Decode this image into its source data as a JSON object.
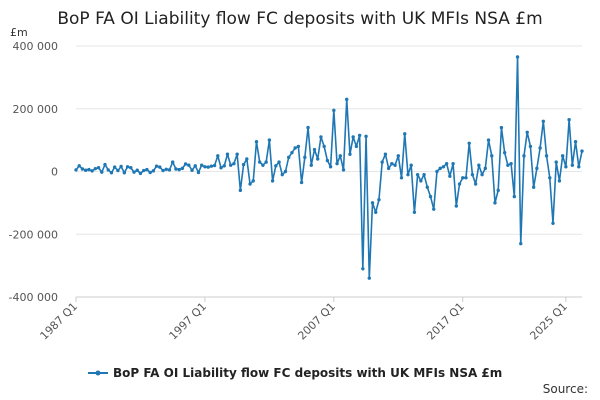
{
  "title": "BoP FA OI Liability flow FC deposits with UK MFIs NSA £m",
  "source_label": "Source:",
  "colors": {
    "series": "#1f77b4",
    "grid": "#e6e6e6",
    "axis": "#cccccc"
  },
  "chart_data": {
    "type": "line",
    "title": "BoP FA OI Liability flow FC deposits with UK MFIs NSA £m",
    "ylabel": "£m",
    "ylim": [
      -400000,
      400000
    ],
    "yticks": [
      -400000,
      -200000,
      0,
      200000,
      400000
    ],
    "ytick_labels": [
      "-400 000",
      "-200 000",
      "0",
      "200 000",
      "400 000"
    ],
    "xticks": [
      "1987 Q1",
      "1997 Q1",
      "2007 Q1",
      "2017 Q1",
      "2025 Q1"
    ],
    "grid": true,
    "legend_position": "bottom",
    "series": [
      {
        "name": "BoP FA OI Liability flow FC deposits with UK MFIs NSA £m",
        "start": "1987 Q1",
        "frequency": "quarterly",
        "values": [
          5000,
          18000,
          8000,
          4000,
          6000,
          2000,
          9000,
          12000,
          -2000,
          22000,
          5000,
          -4000,
          14000,
          3000,
          16000,
          -4000,
          15000,
          12000,
          -2000,
          4000,
          -6000,
          3000,
          6000,
          -3000,
          2000,
          17000,
          14000,
          3000,
          7000,
          5000,
          30000,
          8000,
          6000,
          10000,
          24000,
          20000,
          4000,
          18000,
          -3000,
          20000,
          15000,
          14000,
          17000,
          19000,
          50000,
          12000,
          18000,
          55000,
          20000,
          25000,
          55000,
          -60000,
          22000,
          40000,
          -40000,
          -30000,
          95000,
          30000,
          20000,
          30000,
          100000,
          -30000,
          18000,
          30000,
          -10000,
          0,
          45000,
          60000,
          75000,
          80000,
          -35000,
          45000,
          140000,
          20000,
          70000,
          40000,
          110000,
          80000,
          35000,
          15000,
          195000,
          25000,
          50000,
          5000,
          230000,
          55000,
          110000,
          80000,
          115000,
          -310000,
          112000,
          -340000,
          -100000,
          -130000,
          -90000,
          30000,
          55000,
          10000,
          25000,
          20000,
          50000,
          -20000,
          120000,
          -10000,
          20000,
          -130000,
          -10000,
          -30000,
          -10000,
          -50000,
          -80000,
          -120000,
          0,
          10000,
          15000,
          25000,
          -15000,
          25000,
          -110000,
          -40000,
          -20000,
          -20000,
          90000,
          -10000,
          -40000,
          20000,
          -10000,
          10000,
          100000,
          50000,
          -100000,
          -60000,
          140000,
          60000,
          20000,
          25000,
          -80000,
          365000,
          -230000,
          50000,
          125000,
          80000,
          -50000,
          10000,
          75000,
          160000,
          50000,
          -20000,
          -165000,
          30000,
          -30000,
          50000,
          15000,
          165000,
          20000,
          95000,
          15000,
          65000
        ]
      }
    ]
  }
}
